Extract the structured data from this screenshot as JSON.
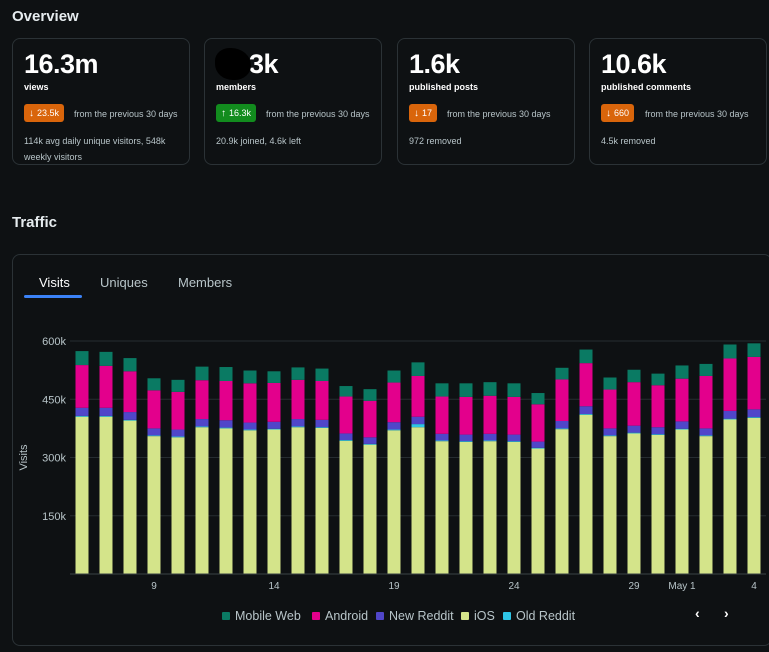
{
  "overview": {
    "title": "Overview",
    "cards": [
      {
        "value": "16.3m",
        "label": "views",
        "badge": "23.5k",
        "direction": "down",
        "compare": "from the previous 30 days",
        "sub": "114k avg daily unique visitors, 548k weekly visitors"
      },
      {
        "value": "3k",
        "label": "members",
        "badge": "16.3k",
        "direction": "up",
        "compare": "from the previous 30 days",
        "sub": "20.9k joined, 4.6k left"
      },
      {
        "value": "1.6k",
        "label": "published posts",
        "badge": "17",
        "direction": "down",
        "compare": "from the previous 30 days",
        "sub": "972 removed"
      },
      {
        "value": "10.6k",
        "label": "published comments",
        "badge": "660",
        "direction": "down",
        "compare": "from the previous 30 days",
        "sub": "4.5k removed"
      }
    ]
  },
  "traffic": {
    "title": "Traffic",
    "tabs": [
      "Visits",
      "Uniques",
      "Members"
    ],
    "active_tab": "Visits",
    "pager": {
      "prev": "‹",
      "next": "›"
    }
  },
  "colors": {
    "mobile_web": "#0a7a63",
    "android": "#e3008c",
    "new_reddit": "#5046c9",
    "ios": "#d4e48a",
    "old_reddit": "#2ec5e6",
    "badge_down": "#d9650b",
    "badge_up": "#128c1e",
    "tab_accent": "#3b82f6"
  },
  "chart_data": {
    "type": "bar",
    "stacked": true,
    "ylabel": "Visits",
    "ylim": [
      0,
      600000
    ],
    "yticks": [
      150000,
      300000,
      450000,
      600000
    ],
    "ytick_labels": [
      "150k",
      "300k",
      "450k",
      "600k"
    ],
    "x_tick_labels": [
      {
        "index": 3,
        "label": "9"
      },
      {
        "index": 8,
        "label": "14"
      },
      {
        "index": 13,
        "label": "19"
      },
      {
        "index": 18,
        "label": "24"
      },
      {
        "index": 23,
        "label": "29"
      },
      {
        "index": 25,
        "label": "May 1"
      },
      {
        "index": 28,
        "label": "4"
      }
    ],
    "grid": true,
    "legend_position": "bottom",
    "series": [
      {
        "name": "iOS",
        "key": "ios",
        "values": [
          405000,
          405000,
          395000,
          355000,
          352000,
          378000,
          375000,
          370000,
          372000,
          378000,
          376000,
          343000,
          333000,
          370000,
          378000,
          342000,
          340000,
          342000,
          340000,
          323000,
          373000,
          410000,
          355000,
          362000,
          358000,
          372000,
          355000,
          398000,
          402000
        ]
      },
      {
        "name": "Old Reddit",
        "key": "old_reddit",
        "values": [
          2000,
          2000,
          2000,
          2000,
          2000,
          2000,
          2000,
          2000,
          2000,
          2000,
          2000,
          2000,
          2000,
          2000,
          8000,
          2000,
          2000,
          2000,
          2000,
          2000,
          2000,
          2000,
          2000,
          2000,
          2000,
          2000,
          2000,
          2000,
          2000
        ]
      },
      {
        "name": "New Reddit",
        "key": "new_reddit",
        "values": [
          21000,
          21000,
          20000,
          18000,
          18000,
          19000,
          19000,
          18000,
          18000,
          19000,
          19000,
          17000,
          17000,
          19000,
          19000,
          17000,
          17000,
          17000,
          17000,
          16000,
          19000,
          20000,
          18000,
          18000,
          18000,
          19000,
          18000,
          20000,
          20000
        ]
      },
      {
        "name": "Android",
        "key": "android",
        "values": [
          110000,
          108000,
          105000,
          98000,
          97000,
          100000,
          101000,
          101000,
          100000,
          101000,
          100000,
          95000,
          94000,
          102000,
          105000,
          96000,
          97000,
          98000,
          97000,
          96000,
          107000,
          111000,
          100000,
          112000,
          108000,
          110000,
          135000,
          135000,
          135000
        ]
      },
      {
        "name": "Mobile Web",
        "key": "mobile_web",
        "values": [
          36000,
          36000,
          34000,
          31000,
          31000,
          35000,
          36000,
          33000,
          30000,
          32000,
          32000,
          27000,
          30000,
          31000,
          35000,
          34000,
          35000,
          35000,
          35000,
          29000,
          30000,
          35000,
          31000,
          32000,
          30000,
          34000,
          31000,
          36000,
          35000
        ]
      }
    ],
    "legend_order": [
      "Mobile Web",
      "Android",
      "New Reddit",
      "iOS",
      "Old Reddit"
    ]
  }
}
